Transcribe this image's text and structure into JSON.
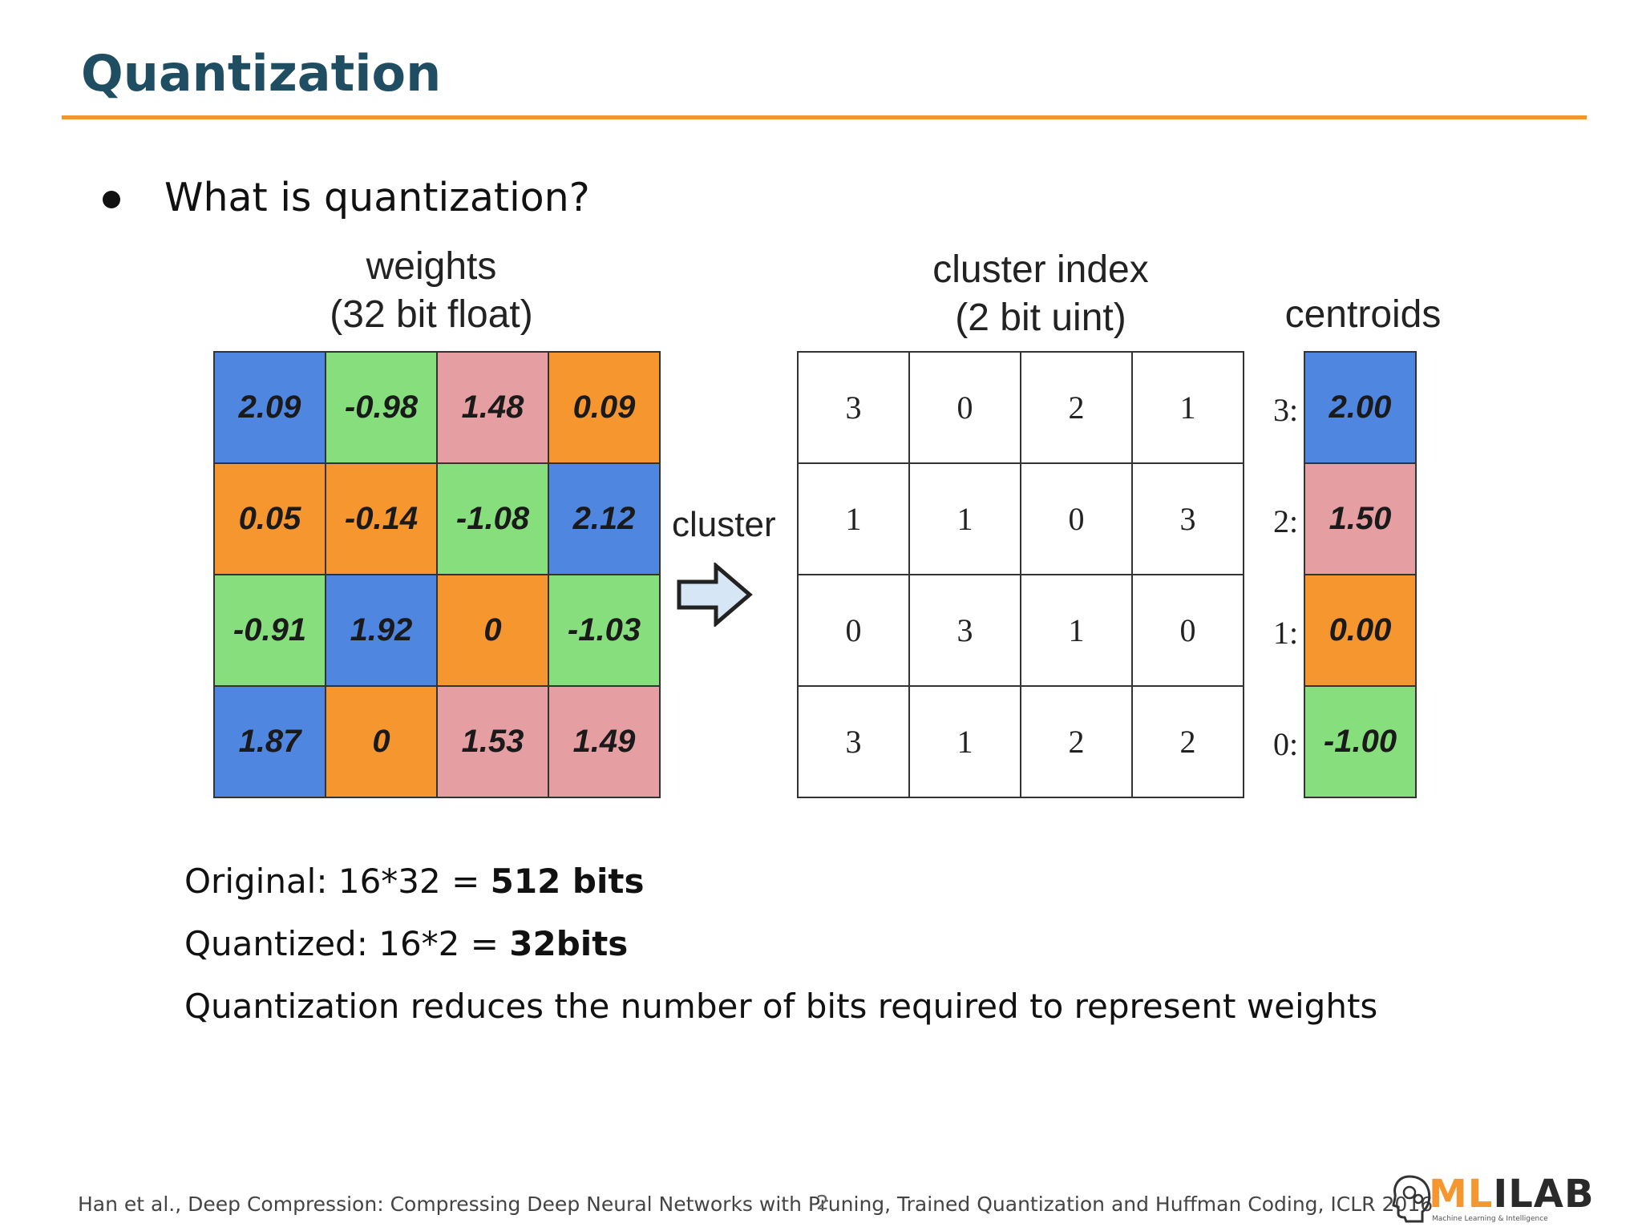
{
  "slide": {
    "title": "Quantization",
    "bullet": "What is quantization?"
  },
  "figure": {
    "weights_header_line1": "weights",
    "weights_header_line2": "(32 bit float)",
    "index_header_line1": "cluster index",
    "index_header_line2": "(2 bit uint)",
    "centroids_header": "centroids",
    "cluster_label": "cluster",
    "weights": [
      "2.09",
      "-0.98",
      "1.48",
      "0.09",
      "0.05",
      "-0.14",
      "-1.08",
      "2.12",
      "-0.91",
      "1.92",
      "0",
      "-1.03",
      "1.87",
      "0",
      "1.53",
      "1.49"
    ],
    "indices": [
      "3",
      "0",
      "2",
      "1",
      "1",
      "1",
      "0",
      "3",
      "0",
      "3",
      "1",
      "0",
      "3",
      "1",
      "2",
      "2"
    ],
    "centroid_labels": [
      "3:",
      "2:",
      "1:",
      "0:"
    ],
    "centroid_values": [
      "2.00",
      "1.50",
      "0.00",
      "-1.00"
    ],
    "colors": {
      "c3": "#4f86e0",
      "c2": "#e59ea1",
      "c1": "#f5962f",
      "c0": "#86de7c"
    }
  },
  "text": {
    "original_label": "Original: 16*32 = ",
    "original_value": "512 bits",
    "quantized_label": "Quantized: 16*2 = ",
    "quantized_value": "32bits",
    "summary": "Quantization reduces the number of bits required to represent weights"
  },
  "footer": {
    "citation": "Han et al., Deep Compression: Compressing Deep Neural Networks with Pruning, Trained Quantization and Huffman Coding, ICLR 2016",
    "page_number": "2",
    "logo_text_a": "ML",
    "logo_text_b": "I",
    "logo_text_c": "LAB",
    "logo_subtitle": "Machine Learning & Intelligence"
  }
}
